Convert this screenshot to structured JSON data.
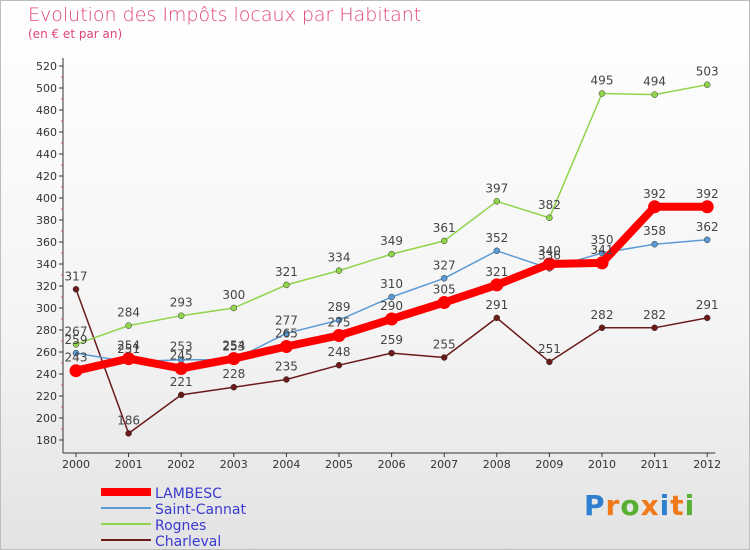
{
  "title": "Evolution des Impôts locaux par Habitant",
  "subtitle": "(en € et par an)",
  "logo": {
    "letters": [
      "P",
      "r",
      "o",
      "x",
      "i",
      "t",
      "i"
    ],
    "colors": [
      "#2f7fd0",
      "#f07a1a",
      "#58b032",
      "#f07a1a",
      "#2f7fd0",
      "#f07a1a",
      "#58b032"
    ]
  },
  "chart_data": {
    "type": "line",
    "title": "Evolution des Impôts locaux par Habitant",
    "ylabel": "(en € et par an)",
    "xlabel": "",
    "ylim": [
      180,
      520
    ],
    "ystep": 20,
    "grid": false,
    "categories": [
      "2000",
      "2001",
      "2002",
      "2003",
      "2004",
      "2005",
      "2006",
      "2007",
      "2008",
      "2009",
      "2010",
      "2011",
      "2012"
    ],
    "series": [
      {
        "name": "LAMBESC",
        "color": "#ff0000",
        "width": 8,
        "values": [
          243,
          254,
          245,
          254,
          265,
          275,
          290,
          305,
          321,
          340,
          341,
          392,
          392
        ]
      },
      {
        "name": "Saint-Cannat",
        "color": "#5b9bd5",
        "width": 1.5,
        "values": [
          259,
          251,
          253,
          253,
          277,
          289,
          310,
          327,
          352,
          336,
          350,
          358,
          362
        ]
      },
      {
        "name": "Rognes",
        "color": "#8fd44a",
        "width": 1.5,
        "values": [
          267,
          284,
          293,
          300,
          321,
          334,
          349,
          361,
          397,
          382,
          495,
          494,
          503
        ]
      },
      {
        "name": "Charleval",
        "color": "#6b1a1a",
        "width": 1.5,
        "values": [
          317,
          186,
          221,
          228,
          235,
          248,
          259,
          255,
          291,
          251,
          282,
          282,
          291
        ]
      }
    ],
    "legend_position": "bottom-left"
  }
}
